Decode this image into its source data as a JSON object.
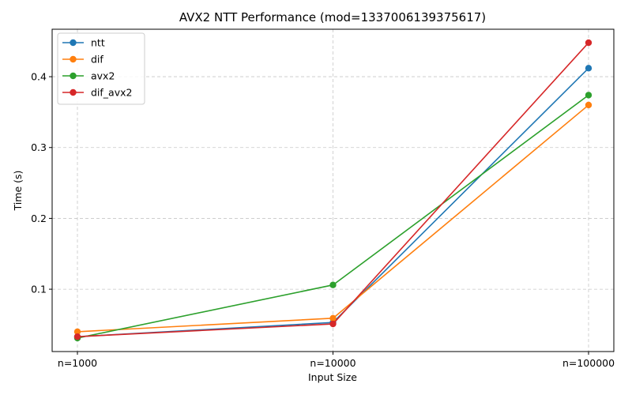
{
  "chart_data": {
    "type": "line",
    "title": "AVX2 NTT Performance (mod=1337006139375617)",
    "xlabel": "Input Size",
    "ylabel": "Time (s)",
    "categories": [
      "n=1000",
      "n=10000",
      "n=100000"
    ],
    "yticks": [
      0.1,
      0.2,
      0.3,
      0.4
    ],
    "ylim": [
      0.012,
      0.467
    ],
    "grid": true,
    "legend_position": "top-left",
    "series": [
      {
        "name": "ntt",
        "color": "#1f77b4",
        "values": [
          0.033,
          0.053,
          0.412
        ]
      },
      {
        "name": "dif",
        "color": "#ff7f0e",
        "values": [
          0.04,
          0.059,
          0.36
        ]
      },
      {
        "name": "avx2",
        "color": "#2ca02c",
        "values": [
          0.031,
          0.106,
          0.374
        ]
      },
      {
        "name": "dif_avx2",
        "color": "#d62728",
        "values": [
          0.033,
          0.051,
          0.448
        ]
      }
    ]
  }
}
